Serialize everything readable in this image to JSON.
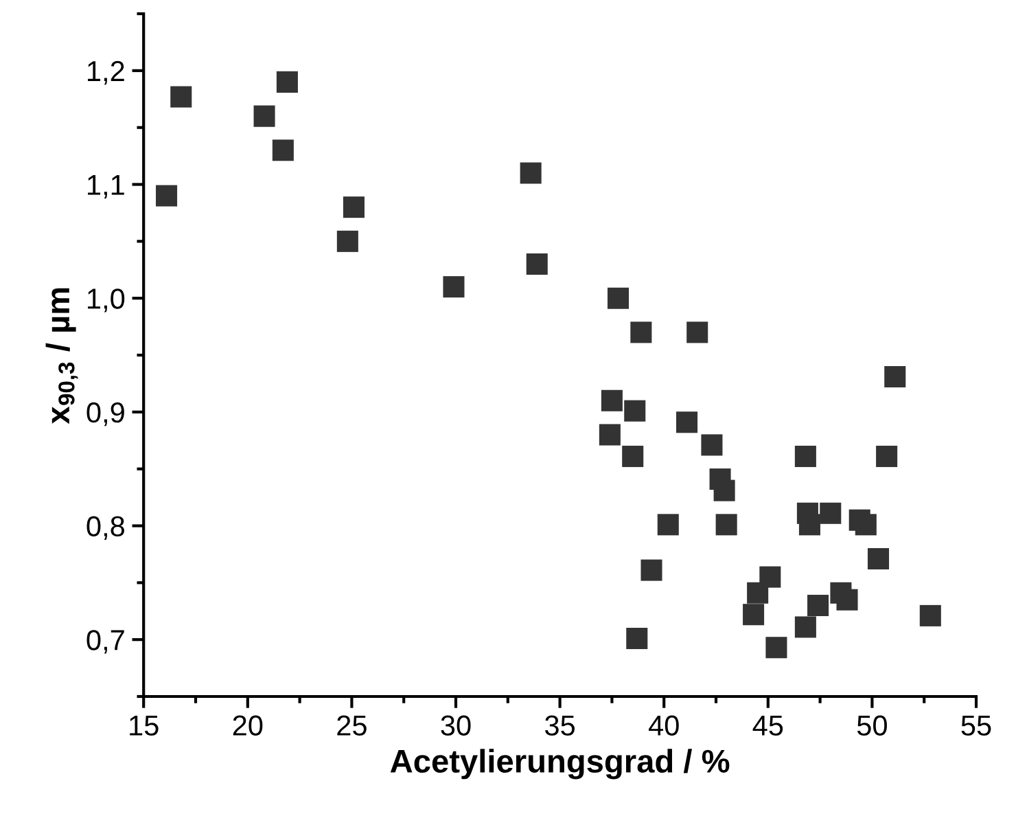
{
  "chart_data": {
    "type": "scatter",
    "xlabel": "Acetylierungsgrad / %",
    "ylabel": "x$_{90,3}$ / µm",
    "marker": "square",
    "grid": false,
    "xlim": [
      15,
      55
    ],
    "xticks": [
      15,
      20,
      25,
      30,
      35,
      40,
      45,
      50,
      55
    ],
    "ylim": [
      0.65,
      1.25
    ],
    "yticks": [
      {
        "value": 0.7,
        "label": "0,7"
      },
      {
        "value": 0.8,
        "label": "0,8"
      },
      {
        "value": 0.9,
        "label": "0,9"
      },
      {
        "value": 1.0,
        "label": "1,0"
      },
      {
        "value": 1.1,
        "label": "1,1"
      },
      {
        "value": 1.2,
        "label": "1,2"
      }
    ],
    "series": [
      {
        "color": "#333333",
        "x": [
          21.9,
          16.8,
          20.8,
          21.7,
          33.6,
          16.1,
          25.1,
          24.8,
          33.9,
          29.9,
          37.8,
          38.9,
          41.6,
          51.1,
          37.5,
          38.6,
          41.1,
          37.4,
          42.3,
          38.5,
          46.8,
          50.7,
          42.7,
          42.9,
          46.9,
          48.0,
          49.4,
          40.2,
          43.0,
          47.0,
          49.7,
          50.3,
          39.4,
          45.1,
          44.5,
          48.5,
          48.8,
          47.4,
          44.3,
          52.8,
          46.8,
          38.7,
          45.4
        ],
        "values": [
          1.19,
          1.177,
          1.16,
          1.13,
          1.11,
          1.09,
          1.08,
          1.05,
          1.03,
          1.01,
          1.0,
          0.97,
          0.97,
          0.931,
          0.91,
          0.901,
          0.891,
          0.88,
          0.871,
          0.861,
          0.861,
          0.861,
          0.841,
          0.831,
          0.811,
          0.811,
          0.805,
          0.801,
          0.801,
          0.801,
          0.801,
          0.771,
          0.761,
          0.755,
          0.741,
          0.741,
          0.735,
          0.73,
          0.722,
          0.721,
          0.711,
          0.701,
          0.693
        ]
      }
    ]
  }
}
